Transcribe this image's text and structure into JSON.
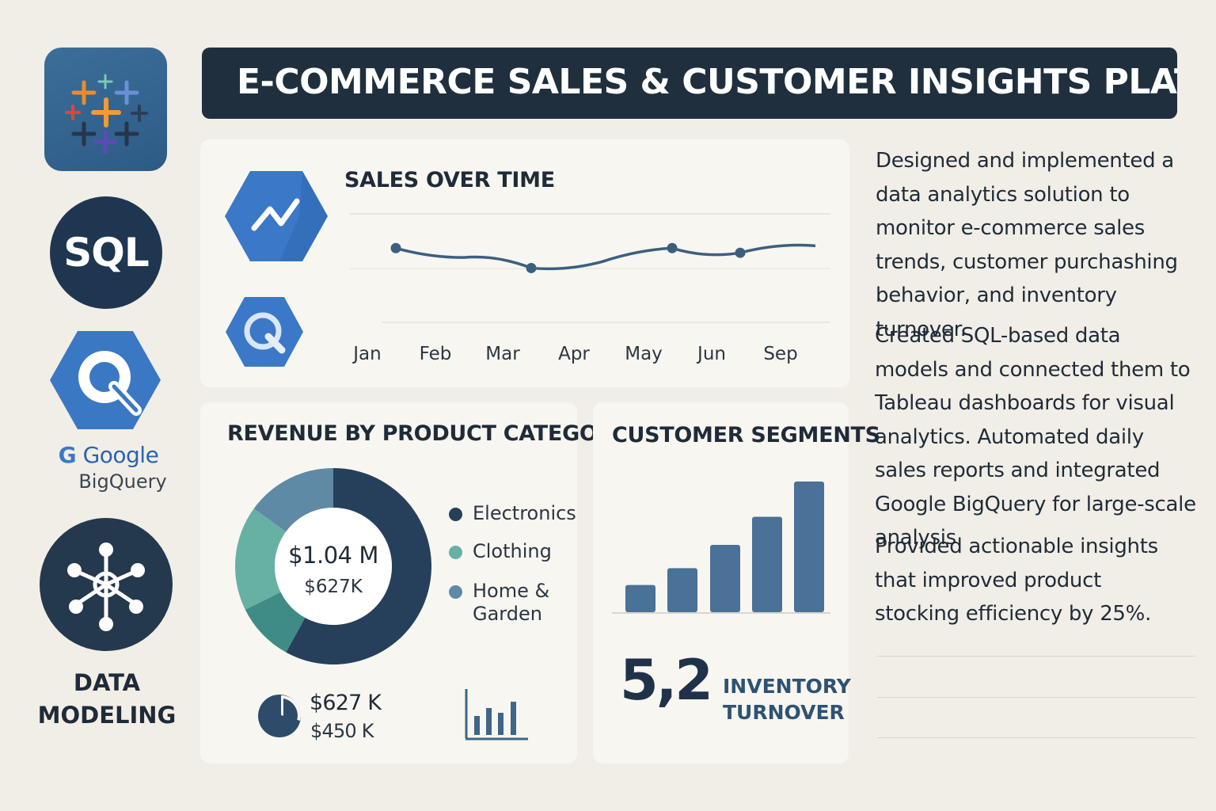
{
  "header": {
    "title": "E-COMMERCE SALES & CUSTOMER INSIGHTS PLATFORM"
  },
  "sidebar": {
    "items": [
      {
        "name": "tableau",
        "icon": "tableau-logo-icon"
      },
      {
        "name": "sql",
        "label": "SQL"
      },
      {
        "name": "bigquery",
        "icon": "bigquery-logo-icon",
        "brand": "Google",
        "product": "BigQuery"
      },
      {
        "name": "data-modeling",
        "icon": "network-icon",
        "label_line1": "DATA",
        "label_line2": "MODELING"
      }
    ]
  },
  "sales_panel": {
    "title": "SALES OVER TIME",
    "icons": [
      "trend-line-icon",
      "bigquery-small-icon"
    ],
    "chart_data": {
      "type": "line",
      "title": "SALES OVER TIME",
      "categories": [
        "Jan",
        "Feb",
        "Mar",
        "Apr",
        "May",
        "Jun",
        "Sep"
      ],
      "values": [
        0.78,
        0.62,
        0.44,
        0.55,
        0.78,
        0.7,
        0.82
      ],
      "grid": true
    }
  },
  "revenue_panel": {
    "title": "REVENUE BY PRODUCT CATEGORY",
    "center_primary": "$1.04 M",
    "center_secondary": "$627K",
    "legend": [
      {
        "label": "Electronics",
        "color": "#26405b"
      },
      {
        "label": "Clothing",
        "color": "#67b0a4"
      },
      {
        "label": "Home &\nGarden",
        "color": "#5f8aa6"
      }
    ],
    "chart_data": {
      "type": "pie",
      "categories": [
        "Electronics",
        "Clothing",
        "Home & Garden"
      ],
      "values": [
        58,
        27,
        15
      ]
    },
    "footer_value1": "$627 K",
    "footer_value2": "$450 K",
    "footer_icons": [
      "pie-chart-icon",
      "bar-chart-icon"
    ]
  },
  "segments_panel": {
    "title": "CUSTOMER SEGMENTS",
    "chart_data": {
      "type": "bar",
      "values": [
        34,
        55,
        84,
        119,
        163
      ]
    },
    "metric_value": "5,2",
    "metric_label_line1": "INVENTORY",
    "metric_label_line2": "TURNOVER"
  },
  "description": {
    "paragraph1": "Designed and implemented a data analytics solution to monitor e-commerce sales trends, customer purchashing behavior, and inventory turnover.",
    "paragraph2": "Created SQL-based data models and connected them to Tableau dashboards for visual analytics. Automated daily sales reports and integrated Google BigQuery for large-scale analysis",
    "paragraph3": "Provided actionable insights that improved product stocking efficiency by 25%."
  },
  "colors": {
    "background": "#f1eee7",
    "banner": "#1f2f3e",
    "accent_blue": "#3b78c7",
    "bar_blue": "#4a7197",
    "line": "#3c5f80"
  }
}
